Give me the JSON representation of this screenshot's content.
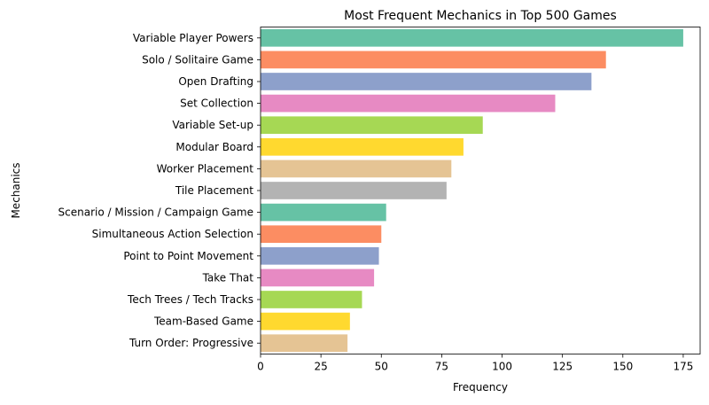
{
  "chart_data": {
    "type": "bar",
    "orientation": "horizontal",
    "title": "Most Frequent Mechanics in Top 500 Games",
    "xlabel": "Frequency",
    "ylabel": "Mechanics",
    "xlim": [
      0,
      182
    ],
    "xticks": [
      0,
      25,
      50,
      75,
      100,
      125,
      150,
      175
    ],
    "grid": false,
    "categories": [
      "Variable Player Powers",
      "Solo / Solitaire Game",
      "Open Drafting",
      "Set Collection",
      "Variable Set-up",
      "Modular Board",
      "Worker Placement",
      "Tile Placement",
      "Scenario / Mission / Campaign Game",
      "Simultaneous Action Selection",
      "Point to Point Movement",
      "Take That",
      "Tech Trees / Tech Tracks",
      "Team-Based Game",
      "Turn Order: Progressive"
    ],
    "values": [
      175,
      143,
      137,
      122,
      92,
      84,
      79,
      77,
      52,
      50,
      49,
      47,
      42,
      37,
      36
    ],
    "colors": [
      "#66c2a5",
      "#fc8d62",
      "#8da0cb",
      "#e78ac3",
      "#a6d854",
      "#ffd92f",
      "#e5c494",
      "#b3b3b3"
    ]
  }
}
